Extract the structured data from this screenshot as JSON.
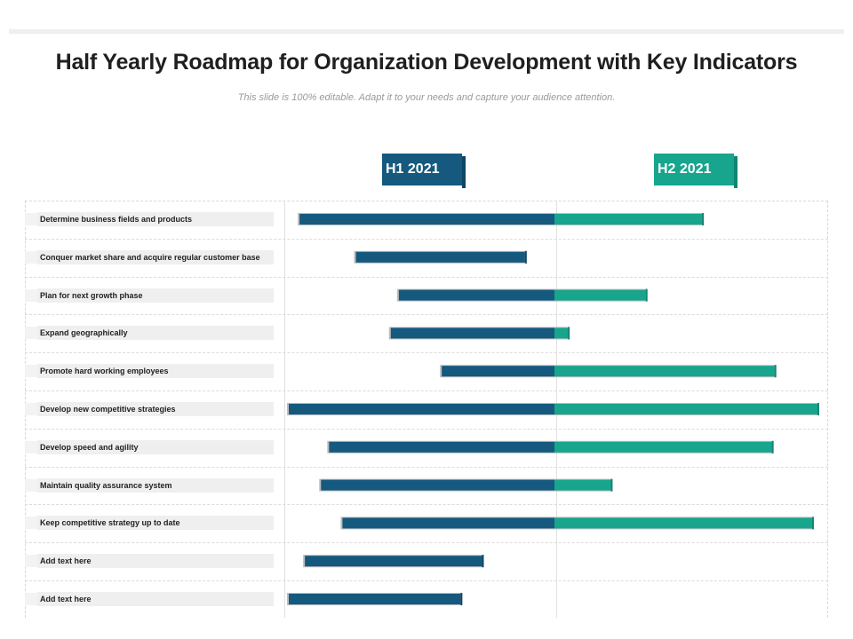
{
  "header": {
    "title": "Half Yearly Roadmap for Organization Development with Key Indicators",
    "subtitle": "This slide is 100% editable. Adapt it to your needs and capture your audience attention."
  },
  "colors": {
    "h1_bar": "#15597f",
    "h2_bar": "#17a58d",
    "label_bg": "#efefef"
  },
  "chart_data": {
    "type": "bar",
    "orientation": "horizontal-gantt",
    "title": "Half Yearly Roadmap for Organization Development with Key Indicators",
    "periods": [
      "H1 2021",
      "H2 2021"
    ],
    "timeline_range": [
      0,
      2
    ],
    "tasks": [
      {
        "name": "Determine business fields and products",
        "start": 0.05,
        "end": 1.55
      },
      {
        "name": "Conquer market share and acquire regular customer base",
        "start": 0.26,
        "end": 0.89
      },
      {
        "name": "Plan for next growth phase",
        "start": 0.42,
        "end": 1.34
      },
      {
        "name": "Expand geographically",
        "start": 0.39,
        "end": 1.05
      },
      {
        "name": "Promote hard working employees",
        "start": 0.58,
        "end": 1.82
      },
      {
        "name": "Develop new competitive strategies",
        "start": 0.01,
        "end": 1.98
      },
      {
        "name": "Develop speed and agility",
        "start": 0.16,
        "end": 1.81
      },
      {
        "name": "Maintain quality assurance system",
        "start": 0.13,
        "end": 1.21
      },
      {
        "name": "Keep competitive strategy up to date",
        "start": 0.21,
        "end": 1.96
      },
      {
        "name": "Add  text here",
        "start": 0.07,
        "end": 0.73
      },
      {
        "name": "Add  text here",
        "start": 0.01,
        "end": 0.65
      }
    ],
    "grid": true
  }
}
